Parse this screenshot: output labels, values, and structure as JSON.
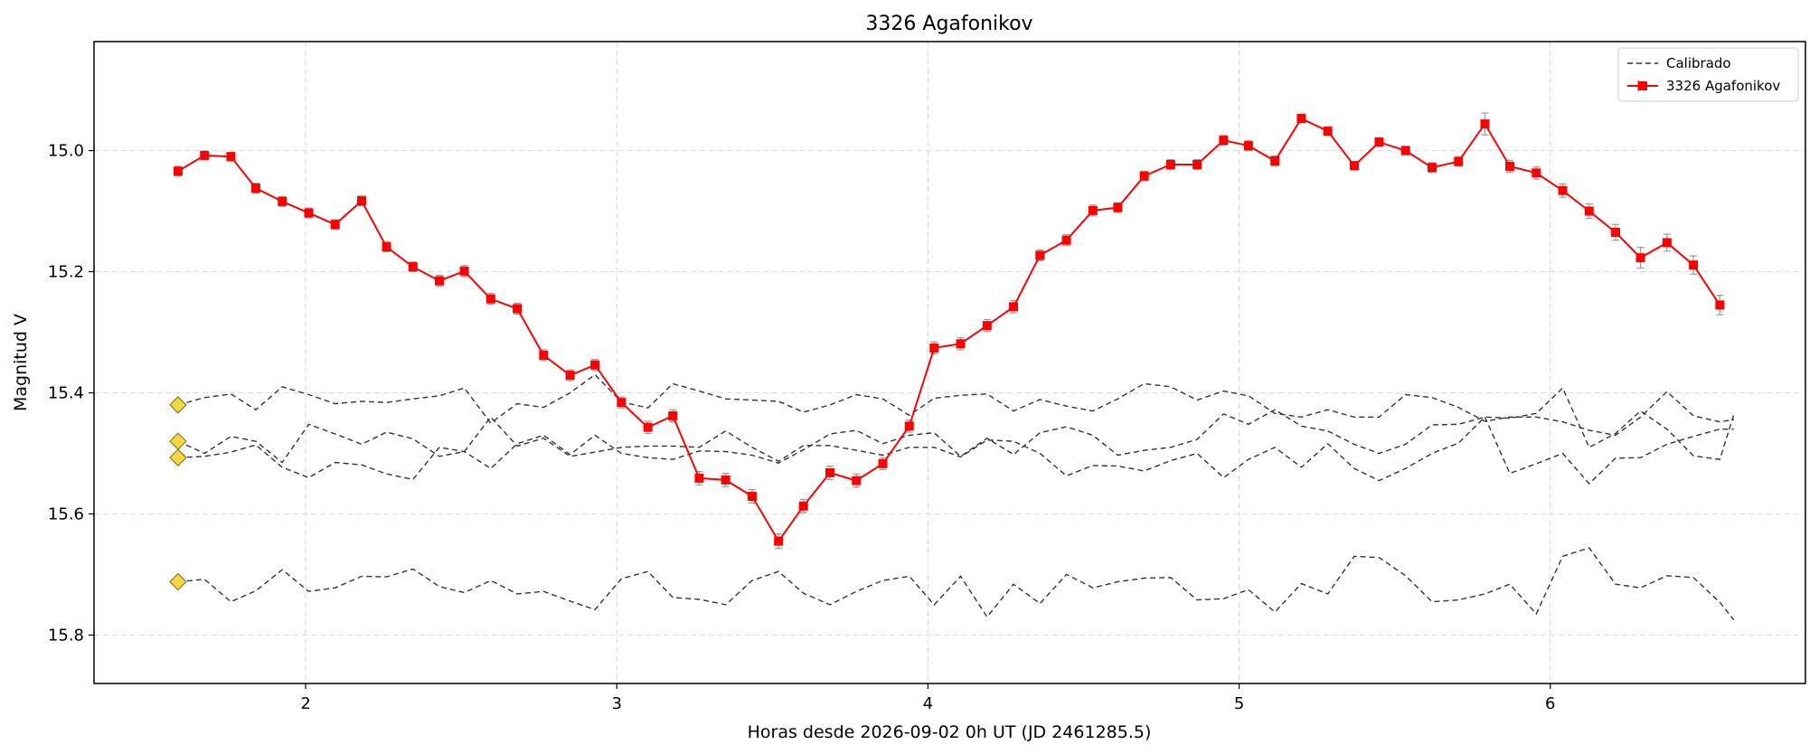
{
  "chart_data": {
    "type": "line",
    "title": "3326 Agafonikov",
    "xlabel": "Horas desde 2026-09-02 0h UT (JD 2461285.5)",
    "ylabel": "Magnitud V",
    "xlim": [
      1.32,
      6.82
    ],
    "ylim": [
      15.88,
      14.82
    ],
    "y_inverted": true,
    "grid": true,
    "legend_position": "top-right",
    "x_ticks": [
      2,
      3,
      4,
      5,
      6
    ],
    "y_ticks": [
      15.0,
      15.2,
      15.4,
      15.6,
      15.8
    ],
    "x_tick_labels": [
      "2",
      "3",
      "4",
      "5",
      "6"
    ],
    "y_tick_labels": [
      "15.0",
      "15.2",
      "15.4",
      "15.6",
      "15.8"
    ],
    "legend": [
      {
        "label": "Calibrado",
        "style": "dashed",
        "color": "#333333"
      },
      {
        "label": "3326 Agafonikov",
        "style": "solid-square-errorbar",
        "color": "#ff0000"
      }
    ],
    "target": {
      "name": "3326 Agafonikov",
      "color": "#ff0000",
      "x": [
        1.59,
        1.675,
        1.76,
        1.84,
        1.925,
        2.01,
        2.095,
        2.18,
        2.26,
        2.345,
        2.43,
        2.51,
        2.595,
        2.68,
        2.765,
        2.85,
        2.93,
        3.015,
        3.1,
        3.18,
        3.265,
        3.35,
        3.435,
        3.52,
        3.6,
        3.685,
        3.77,
        3.855,
        3.94,
        4.02,
        4.105,
        4.19,
        4.275,
        4.36,
        4.445,
        4.53,
        4.61,
        4.695,
        4.78,
        4.865,
        4.95,
        5.03,
        5.115,
        5.2,
        5.285,
        5.37,
        5.45,
        5.535,
        5.62,
        5.705,
        5.79,
        5.87,
        5.955,
        6.04,
        6.125,
        6.21,
        6.29,
        6.375,
        6.46,
        6.545
      ],
      "y": [
        15.034,
        15.008,
        15.01,
        15.062,
        15.084,
        15.103,
        15.122,
        15.083,
        15.159,
        15.192,
        15.215,
        15.199,
        15.245,
        15.261,
        15.338,
        15.371,
        15.354,
        15.416,
        15.457,
        15.438,
        15.541,
        15.544,
        15.571,
        15.645,
        15.587,
        15.532,
        15.545,
        15.517,
        15.455,
        15.326,
        15.319,
        15.289,
        15.258,
        15.173,
        15.148,
        15.099,
        15.094,
        15.042,
        15.023,
        15.023,
        14.983,
        14.992,
        15.017,
        14.947,
        14.968,
        15.025,
        14.986,
        15.0,
        15.028,
        15.018,
        14.956,
        15.026,
        15.037,
        15.066,
        15.1,
        15.135,
        15.177,
        15.152,
        15.189,
        15.255
      ],
      "errors": [
        0.008,
        0.007,
        0.007,
        0.008,
        0.008,
        0.008,
        0.008,
        0.008,
        0.008,
        0.008,
        0.009,
        0.009,
        0.009,
        0.009,
        0.009,
        0.009,
        0.009,
        0.009,
        0.01,
        0.01,
        0.011,
        0.011,
        0.011,
        0.012,
        0.011,
        0.011,
        0.011,
        0.01,
        0.01,
        0.01,
        0.01,
        0.01,
        0.01,
        0.009,
        0.009,
        0.009,
        0.008,
        0.008,
        0.008,
        0.008,
        0.008,
        0.008,
        0.008,
        0.007,
        0.007,
        0.007,
        0.007,
        0.007,
        0.008,
        0.008,
        0.018,
        0.01,
        0.01,
        0.011,
        0.012,
        0.013,
        0.017,
        0.014,
        0.015,
        0.016
      ]
    },
    "calibrators": {
      "name": "Calibrado",
      "color": "#333333",
      "x": [
        1.59,
        1.675,
        1.76,
        1.84,
        1.925,
        2.01,
        2.095,
        2.18,
        2.26,
        2.345,
        2.43,
        2.51,
        2.595,
        2.68,
        2.765,
        2.85,
        2.93,
        3.015,
        3.1,
        3.18,
        3.265,
        3.35,
        3.435,
        3.52,
        3.6,
        3.685,
        3.77,
        3.855,
        3.94,
        4.02,
        4.105,
        4.19,
        4.275,
        4.36,
        4.445,
        4.53,
        4.61,
        4.695,
        4.78,
        4.865,
        4.95,
        5.03,
        5.115,
        5.2,
        5.285,
        5.37,
        5.45,
        5.535,
        5.62,
        5.705,
        5.79,
        5.87,
        5.955,
        6.04,
        6.125,
        6.21,
        6.29,
        6.375,
        6.46,
        6.545,
        6.59
      ],
      "series": [
        [
          15.42,
          15.408,
          15.402,
          15.428,
          15.39,
          15.403,
          15.418,
          15.414,
          15.416,
          15.41,
          15.405,
          15.392,
          15.45,
          15.418,
          15.424,
          15.4,
          15.37,
          15.415,
          15.425,
          15.385,
          15.397,
          15.41,
          15.412,
          15.414,
          15.432,
          15.42,
          15.403,
          15.41,
          15.437,
          15.409,
          15.404,
          15.402,
          15.43,
          15.411,
          15.422,
          15.43,
          15.41,
          15.385,
          15.39,
          15.412,
          15.397,
          15.405,
          15.434,
          15.44,
          15.428,
          15.44,
          15.44,
          15.403,
          15.408,
          15.424,
          15.447,
          15.44,
          15.44,
          15.448,
          15.462,
          15.47,
          15.44,
          15.398,
          15.438,
          15.448,
          15.444
        ],
        [
          15.48,
          15.5,
          15.472,
          15.48,
          15.515,
          15.452,
          15.468,
          15.485,
          15.465,
          15.476,
          15.505,
          15.497,
          15.44,
          15.488,
          15.475,
          15.505,
          15.498,
          15.49,
          15.488,
          15.488,
          15.49,
          15.463,
          15.49,
          15.513,
          15.487,
          15.487,
          15.495,
          15.503,
          15.49,
          15.49,
          15.506,
          15.478,
          15.48,
          15.5,
          15.537,
          15.52,
          15.521,
          15.529,
          15.512,
          15.5,
          15.54,
          15.51,
          15.49,
          15.523,
          15.484,
          15.525,
          15.545,
          15.525,
          15.5,
          15.483,
          15.44,
          15.533,
          15.517,
          15.5,
          15.55,
          15.508,
          15.507,
          15.485,
          15.472,
          15.46,
          15.46
        ],
        [
          15.507,
          15.505,
          15.498,
          15.486,
          15.523,
          15.54,
          15.515,
          15.519,
          15.534,
          15.543,
          15.49,
          15.497,
          15.525,
          15.484,
          15.47,
          15.502,
          15.47,
          15.5,
          15.507,
          15.51,
          15.496,
          15.497,
          15.503,
          15.516,
          15.494,
          15.468,
          15.462,
          15.484,
          15.47,
          15.466,
          15.505,
          15.475,
          15.502,
          15.466,
          15.456,
          15.47,
          15.503,
          15.495,
          15.49,
          15.477,
          15.435,
          15.452,
          15.428,
          15.455,
          15.463,
          15.485,
          15.5,
          15.485,
          15.453,
          15.452,
          15.44,
          15.442,
          15.434,
          15.392,
          15.49,
          15.467,
          15.43,
          15.46,
          15.504,
          15.51,
          15.436
        ],
        [
          15.712,
          15.708,
          15.745,
          15.727,
          15.692,
          15.728,
          15.722,
          15.703,
          15.704,
          15.691,
          15.72,
          15.73,
          15.71,
          15.732,
          15.728,
          15.744,
          15.758,
          15.707,
          15.695,
          15.738,
          15.741,
          15.75,
          15.71,
          15.695,
          15.731,
          15.75,
          15.728,
          15.71,
          15.703,
          15.75,
          15.703,
          15.77,
          15.716,
          15.748,
          15.7,
          15.722,
          15.712,
          15.706,
          15.705,
          15.742,
          15.74,
          15.725,
          15.762,
          15.715,
          15.732,
          15.67,
          15.672,
          15.702,
          15.745,
          15.742,
          15.732,
          15.716,
          15.765,
          15.67,
          15.656,
          15.716,
          15.722,
          15.702,
          15.705,
          15.746,
          15.775
        ]
      ],
      "reference_markers": {
        "x": 1.59,
        "y": [
          15.42,
          15.48,
          15.507,
          15.712
        ],
        "color": "#f5d742"
      }
    }
  }
}
